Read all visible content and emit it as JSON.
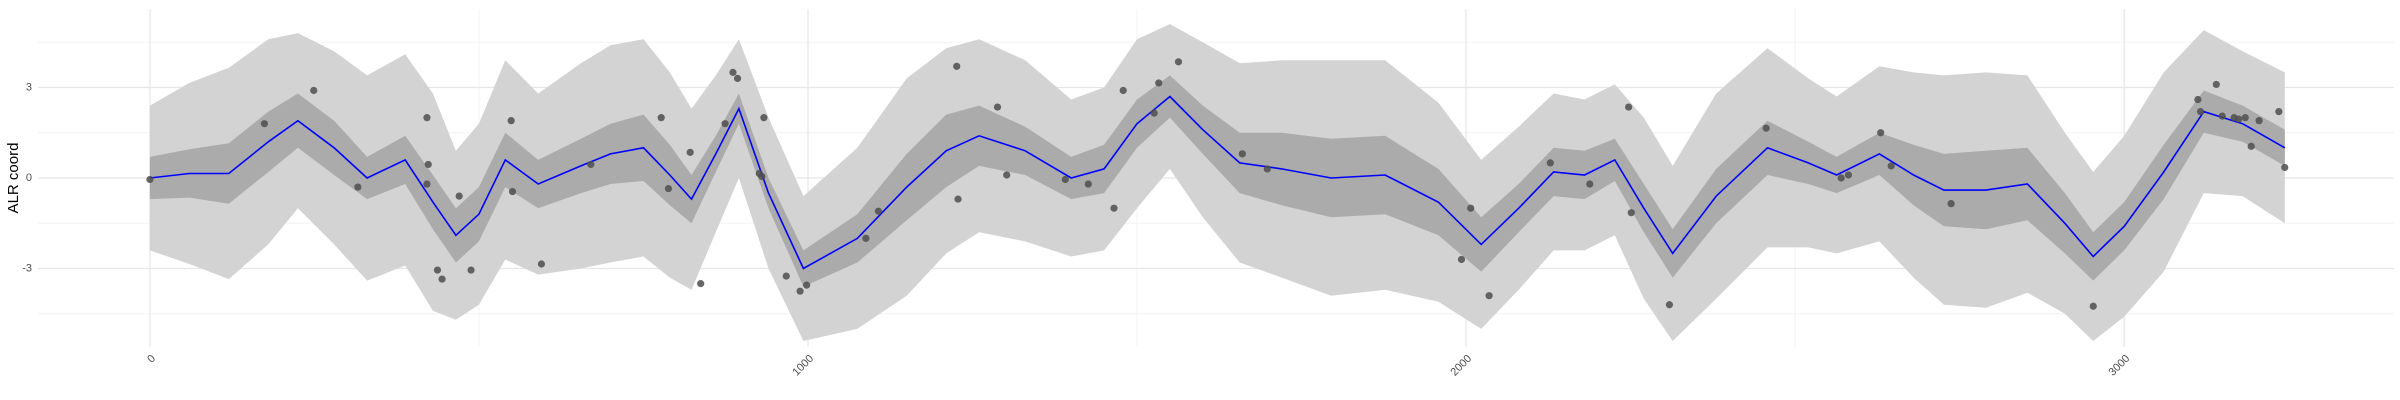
{
  "chart_data": {
    "type": "line",
    "y_label": "ALR coord",
    "xlim": [
      -170,
      3410
    ],
    "ylim": [
      -5.6,
      5.6
    ],
    "xticks": [
      0,
      1000,
      2000,
      3000
    ],
    "yticks": [
      -3,
      0,
      3
    ],
    "minor_xticks": [
      500,
      1500,
      2500
    ],
    "minor_yticks": [
      -4.5,
      -1.5,
      1.5,
      4.5
    ],
    "grid": true,
    "x": [
      0,
      60,
      120,
      180,
      225,
      280,
      330,
      388,
      430,
      465,
      500,
      540,
      590,
      655,
      700,
      750,
      790,
      823,
      860,
      895,
      940,
      993,
      1075,
      1150,
      1210,
      1260,
      1330,
      1400,
      1450,
      1500,
      1550,
      1600,
      1656,
      1720,
      1795,
      1877,
      1958,
      2023,
      2080,
      2133,
      2180,
      2226,
      2270,
      2314,
      2380,
      2458,
      2520,
      2563,
      2628,
      2680,
      2726,
      2790,
      2853,
      2910,
      2953,
      3000,
      3060,
      3121,
      3180,
      3244
    ],
    "bands": [
      {
        "color": "#d3d3d3",
        "lower": [
          -2.4,
          -2.85,
          -3.35,
          -2.2,
          -1.0,
          -2.2,
          -3.4,
          -2.9,
          -4.4,
          -4.7,
          -4.2,
          -2.7,
          -3.2,
          -3.0,
          -2.8,
          -2.6,
          -3.3,
          -3.7,
          -1.8,
          0.0,
          -3.0,
          -5.4,
          -5.0,
          -3.9,
          -2.5,
          -1.8,
          -2.1,
          -2.6,
          -2.4,
          -1.0,
          0.3,
          -1.3,
          -2.8,
          -3.3,
          -3.9,
          -3.7,
          -4.1,
          -5.0,
          -3.7,
          -2.4,
          -2.4,
          -1.9,
          -4.0,
          -5.4,
          -4.0,
          -2.3,
          -2.3,
          -2.5,
          -2.1,
          -3.3,
          -4.2,
          -4.3,
          -3.8,
          -4.5,
          -5.4,
          -4.6,
          -3.1,
          -0.5,
          -0.6,
          -1.5
        ],
        "upper": [
          2.4,
          3.15,
          3.65,
          4.6,
          4.8,
          4.2,
          3.4,
          4.1,
          2.8,
          0.9,
          1.8,
          3.9,
          2.8,
          3.8,
          4.4,
          4.6,
          3.5,
          2.3,
          3.4,
          4.6,
          2.0,
          -0.6,
          1.0,
          3.3,
          4.3,
          4.6,
          3.9,
          2.6,
          3.0,
          4.6,
          5.1,
          4.5,
          3.8,
          3.9,
          3.9,
          3.9,
          2.5,
          0.6,
          1.7,
          2.8,
          2.6,
          3.1,
          2.0,
          0.4,
          2.8,
          4.3,
          3.3,
          2.7,
          3.7,
          3.5,
          3.4,
          3.5,
          3.4,
          1.5,
          0.2,
          1.4,
          3.5,
          4.9,
          4.2,
          3.5
        ]
      },
      {
        "color": "#ababab",
        "lower": [
          -0.7,
          -0.65,
          -0.85,
          0.2,
          1.0,
          0.1,
          -0.7,
          -0.2,
          -1.7,
          -2.8,
          -2.1,
          -0.3,
          -1.0,
          -0.5,
          -0.2,
          -0.1,
          -0.9,
          -1.5,
          0.2,
          1.8,
          -1.0,
          -3.6,
          -2.8,
          -1.4,
          -0.3,
          0.4,
          0.1,
          -0.7,
          -0.5,
          1.0,
          2.0,
          0.8,
          -0.5,
          -0.9,
          -1.3,
          -1.2,
          -1.9,
          -3.1,
          -1.8,
          -0.6,
          -0.7,
          -0.1,
          -1.8,
          -3.3,
          -1.5,
          0.1,
          -0.2,
          -0.5,
          0.1,
          -0.9,
          -1.6,
          -1.7,
          -1.4,
          -2.5,
          -3.4,
          -2.4,
          -0.7,
          1.5,
          1.2,
          0.4
        ],
        "upper": [
          0.7,
          0.95,
          1.15,
          2.2,
          2.8,
          1.9,
          0.7,
          1.4,
          0.1,
          -1.0,
          -0.3,
          1.5,
          0.6,
          1.3,
          1.8,
          2.1,
          1.1,
          0.1,
          1.4,
          2.8,
          0.0,
          -2.4,
          -1.2,
          0.8,
          2.1,
          2.4,
          1.7,
          0.7,
          1.1,
          2.6,
          3.4,
          2.4,
          1.5,
          1.5,
          1.3,
          1.4,
          0.3,
          -1.3,
          -0.2,
          1.0,
          0.9,
          1.3,
          -0.2,
          -1.7,
          0.3,
          1.9,
          1.2,
          0.7,
          1.5,
          1.1,
          0.8,
          0.9,
          1.0,
          -0.5,
          -1.8,
          -0.8,
          1.1,
          2.9,
          2.4,
          1.6
        ]
      }
    ],
    "series": [
      {
        "color": "#0000ff",
        "values": [
          0,
          0.15,
          0.15,
          1.2,
          1.9,
          1.0,
          0,
          0.6,
          -0.8,
          -1.9,
          -1.2,
          0.6,
          -0.2,
          0.4,
          0.8,
          1.0,
          0.1,
          -0.7,
          0.8,
          2.3,
          -0.5,
          -3.0,
          -2.0,
          -0.3,
          0.9,
          1.4,
          0.9,
          0,
          0.3,
          1.8,
          2.7,
          1.6,
          0.5,
          0.3,
          0,
          0.1,
          -0.8,
          -2.2,
          -1.0,
          0.2,
          0.1,
          0.6,
          -1.0,
          -2.5,
          -0.6,
          1.0,
          0.5,
          0.1,
          0.8,
          0.1,
          -0.4,
          -0.4,
          -0.2,
          -1.5,
          -2.6,
          -1.6,
          0.2,
          2.2,
          1.8,
          1.0
        ]
      }
    ],
    "points": {
      "color": "#4d4d4d",
      "x": [
        0,
        174,
        249,
        316,
        421,
        423,
        421,
        437,
        444,
        470,
        488,
        549,
        551,
        595,
        670,
        777,
        788,
        821,
        837,
        874,
        886,
        893,
        926,
        930,
        933,
        967,
        988,
        998,
        1088,
        1107,
        1226,
        1228,
        1288,
        1302,
        1391,
        1426,
        1465,
        1479,
        1526,
        1533,
        1563,
        1660,
        1698,
        1993,
        2007,
        2035,
        2128,
        2188,
        2247,
        2251,
        2309,
        2456,
        2570,
        2581,
        2630,
        2646,
        2737,
        2953,
        3112,
        3116,
        3140,
        3149,
        3167,
        3174,
        3184,
        3193,
        3205,
        3235,
        3244
      ],
      "y": [
        -0.05,
        1.8,
        2.9,
        -0.3,
        2.0,
        0.45,
        -0.2,
        -3.05,
        -3.35,
        -0.6,
        -3.05,
        1.9,
        -0.45,
        -2.85,
        0.45,
        2.0,
        -0.35,
        0.85,
        -3.5,
        1.8,
        3.5,
        3.3,
        0.15,
        0.05,
        2.0,
        -3.25,
        -3.75,
        -3.55,
        -2.0,
        -1.1,
        3.7,
        -0.7,
        2.35,
        0.1,
        -0.05,
        -0.2,
        -1.0,
        2.9,
        2.15,
        3.15,
        3.85,
        0.8,
        0.3,
        -2.7,
        -1.0,
        -3.9,
        0.5,
        -0.2,
        2.35,
        -1.15,
        -4.2,
        1.65,
        0.0,
        0.1,
        1.5,
        0.4,
        -0.85,
        -4.25,
        2.6,
        2.2,
        3.1,
        2.05,
        2.0,
        1.95,
        2.0,
        1.05,
        1.9,
        2.2,
        0.35
      ]
    }
  }
}
